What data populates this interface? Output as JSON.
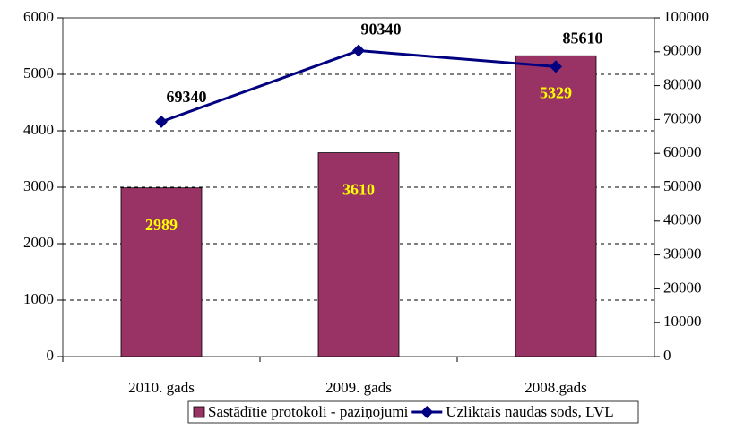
{
  "chart_data": {
    "type": "bar",
    "categories": [
      "2010. gads",
      "2009. gads",
      "2008.gads"
    ],
    "series": [
      {
        "name": "Sastādītie protokoli - paziņojumi",
        "type": "bar",
        "color": "#993366",
        "values": [
          2989,
          3610,
          5329
        ]
      },
      {
        "name": "Uzliktais naudas sods, LVL",
        "type": "line",
        "axis": "y2",
        "color": "#000080",
        "values": [
          69340,
          90340,
          85610
        ]
      }
    ],
    "ylim": [
      0,
      6000
    ],
    "yticks": [
      0,
      1000,
      2000,
      3000,
      4000,
      5000,
      6000
    ],
    "y2lim": [
      0,
      100000
    ],
    "y2ticks": [
      0,
      10000,
      20000,
      30000,
      40000,
      50000,
      60000,
      70000,
      80000,
      90000,
      100000
    ],
    "grid": true
  }
}
